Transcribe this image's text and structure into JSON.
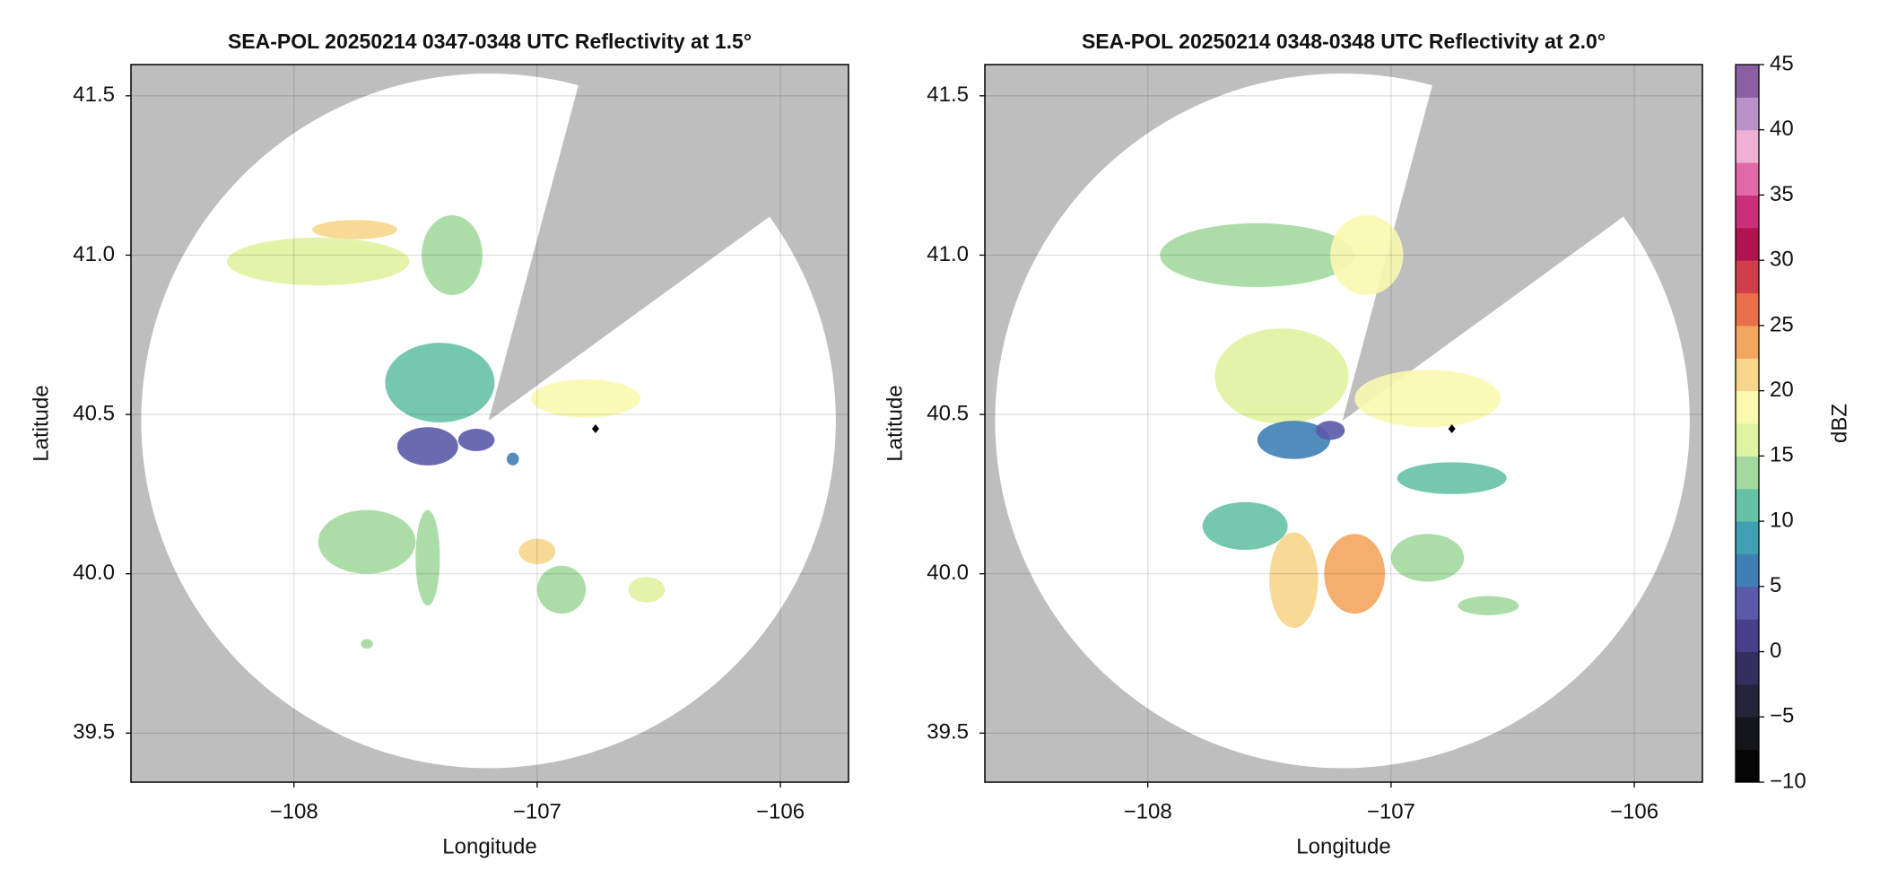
{
  "chart_data": [
    {
      "type": "radar",
      "title": "SEA-POL 20250214 0347-0348 UTC Reflectivity at 1.5°",
      "xlabel": "Longitude",
      "ylabel": "Latitude",
      "xlim": [
        -108.67,
        -105.72
      ],
      "ylim": [
        39.346,
        41.598
      ],
      "xticks": [
        {
          "value": -108,
          "label": "−108"
        },
        {
          "value": -107,
          "label": "−107"
        },
        {
          "value": -106,
          "label": "−106"
        }
      ],
      "yticks": [
        39.5,
        {
          "value": 40.0,
          "label": "40.0"
        },
        40.5,
        {
          "value": 41.0,
          "label": "41.0"
        },
        41.5
      ],
      "grid": true,
      "coverage": {
        "center": [
          -107.2,
          40.48
        ],
        "radius": 1.09,
        "blocked_azimuth": [
          15,
          54
        ]
      },
      "echoes": {
        "x": [
          -107.75,
          -107.9,
          -107.35,
          -107.4,
          -107.45,
          -107.25,
          -106.8,
          -107.7,
          -107.45,
          -107.0,
          -106.9,
          -106.55,
          -107.7,
          -107.1
        ],
        "y": [
          41.08,
          40.98,
          41.0,
          40.6,
          40.4,
          40.42,
          40.55,
          40.1,
          40.05,
          40.07,
          39.95,
          39.95,
          39.78,
          40.36
        ],
        "values": [
          22,
          16,
          13,
          12,
          5,
          3,
          20,
          14,
          13,
          22,
          14,
          17,
          14,
          6
        ],
        "width": [
          0.35,
          0.75,
          0.25,
          0.45,
          0.25,
          0.15,
          0.45,
          0.4,
          0.1,
          0.15,
          0.2,
          0.15,
          0.05,
          0.05
        ],
        "height": [
          0.06,
          0.15,
          0.25,
          0.25,
          0.12,
          0.07,
          0.12,
          0.2,
          0.3,
          0.08,
          0.15,
          0.08,
          0.03,
          0.04
        ]
      },
      "marker": {
        "x": -106.76,
        "y": 40.455,
        "color": "#000000"
      }
    },
    {
      "type": "radar",
      "title": "SEA-POL 20250214 0348-0348 UTC Reflectivity at 2.0°",
      "xlabel": "Longitude",
      "ylabel": "Latitude",
      "xlim": [
        -108.67,
        -105.72
      ],
      "ylim": [
        39.346,
        41.598
      ],
      "xticks": [
        {
          "value": -108,
          "label": "−108"
        },
        {
          "value": -107,
          "label": "−107"
        },
        {
          "value": -106,
          "label": "−106"
        }
      ],
      "yticks": [
        39.5,
        {
          "value": 40.0,
          "label": "40.0"
        },
        40.5,
        {
          "value": 41.0,
          "label": "41.0"
        },
        41.5
      ],
      "grid": true,
      "coverage": {
        "center": [
          -107.2,
          40.48
        ],
        "radius": 1.09,
        "blocked_azimuth": [
          15,
          54
        ]
      },
      "echoes": {
        "x": [
          -107.55,
          -107.1,
          -107.45,
          -107.4,
          -106.85,
          -106.75,
          -107.6,
          -107.4,
          -107.15,
          -106.85,
          -107.25,
          -106.6
        ],
        "y": [
          41.0,
          41.0,
          40.62,
          40.42,
          40.55,
          40.3,
          40.15,
          39.98,
          40.0,
          40.05,
          40.45,
          39.9
        ],
        "values": [
          15,
          18,
          16,
          6,
          19,
          12,
          12,
          22,
          23,
          15,
          3,
          13
        ],
        "width": [
          0.8,
          0.3,
          0.55,
          0.3,
          0.6,
          0.45,
          0.35,
          0.2,
          0.25,
          0.3,
          0.12,
          0.25
        ],
        "height": [
          0.2,
          0.25,
          0.3,
          0.12,
          0.18,
          0.1,
          0.15,
          0.3,
          0.25,
          0.15,
          0.06,
          0.06
        ]
      },
      "marker": {
        "x": -106.75,
        "y": 40.455,
        "color": "#000000"
      }
    },
    {
      "type": "colorbar",
      "label": "dBZ",
      "lim": [
        -10,
        45
      ],
      "ticks": [
        {
          "value": -10,
          "label": "−10"
        },
        {
          "value": -5,
          "label": "−5"
        },
        0,
        5,
        10,
        15,
        20,
        25,
        30,
        35,
        40,
        45
      ],
      "levels": [
        -10,
        -7.5,
        -5,
        -2.5,
        0,
        2.5,
        5,
        7.5,
        10,
        12.5,
        15,
        17.5,
        20,
        22.5,
        25,
        27.5,
        30,
        32.5,
        35,
        37.5,
        40,
        42.5,
        45
      ],
      "colors": [
        "#050505",
        "#15151c",
        "#24243a",
        "#332f5e",
        "#4a3f8a",
        "#5a5aa8",
        "#3f7fb6",
        "#3ea0b0",
        "#66c2a5",
        "#a3d99f",
        "#e0f3a0",
        "#fbf8b0",
        "#f7d58a",
        "#f3a65e",
        "#e8704a",
        "#cf3f4a",
        "#b01450",
        "#c9307a",
        "#e06aa8",
        "#eeb0d4",
        "#b892c8",
        "#8a5fa4"
      ]
    }
  ]
}
